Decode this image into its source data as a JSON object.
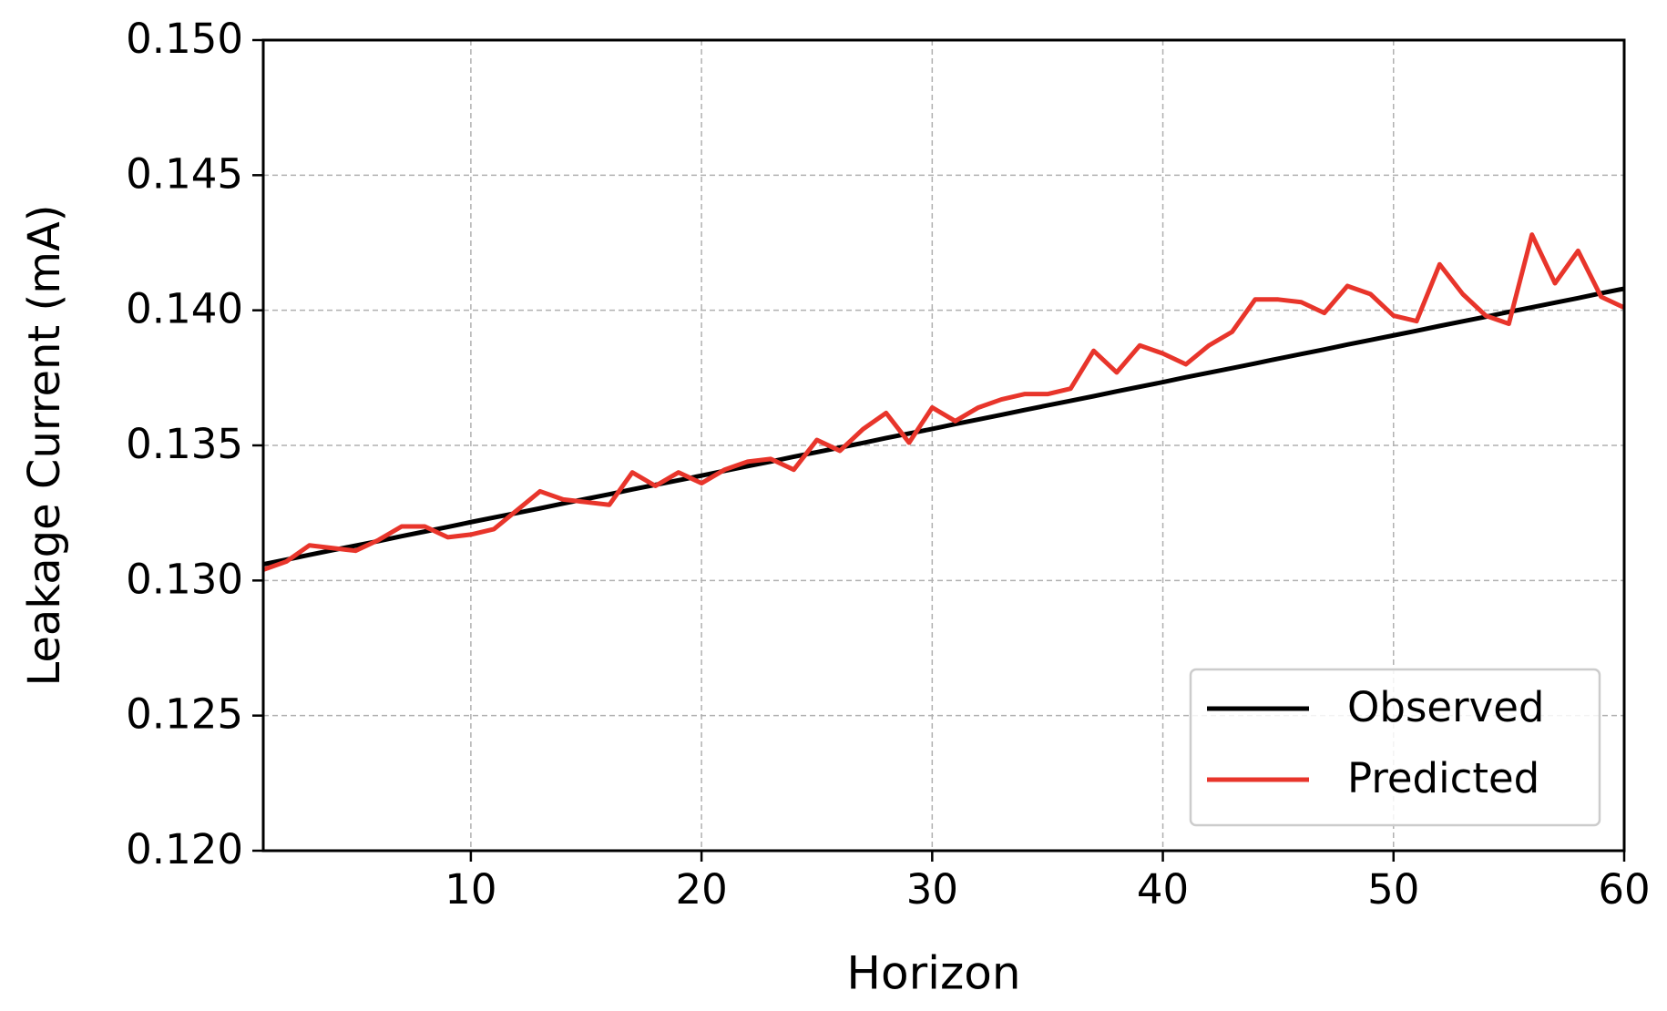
{
  "chart_data": {
    "type": "line",
    "x_label": "Horizon",
    "y_label": "Leakage Current (mA)",
    "x": [
      1,
      2,
      3,
      4,
      5,
      6,
      7,
      8,
      9,
      10,
      11,
      12,
      13,
      14,
      15,
      16,
      17,
      18,
      19,
      20,
      21,
      22,
      23,
      24,
      25,
      26,
      27,
      28,
      29,
      30,
      31,
      32,
      33,
      34,
      35,
      36,
      37,
      38,
      39,
      40,
      41,
      42,
      43,
      44,
      45,
      46,
      47,
      48,
      49,
      50,
      51,
      52,
      53,
      54,
      55,
      56,
      57,
      58,
      59,
      60
    ],
    "series": [
      {
        "name": "Observed",
        "color": "#000000",
        "values": [
          0.1306,
          0.13077,
          0.13095,
          0.13112,
          0.13129,
          0.13146,
          0.13164,
          0.13181,
          0.13198,
          0.13216,
          0.13233,
          0.1325,
          0.13267,
          0.13285,
          0.13302,
          0.13319,
          0.13337,
          0.13354,
          0.13371,
          0.13388,
          0.13406,
          0.13423,
          0.1344,
          0.13458,
          0.13475,
          0.13492,
          0.13509,
          0.13527,
          0.13544,
          0.13561,
          0.13579,
          0.13596,
          0.13613,
          0.13631,
          0.13648,
          0.13665,
          0.13682,
          0.137,
          0.13717,
          0.13734,
          0.13752,
          0.13769,
          0.13786,
          0.13803,
          0.13821,
          0.13838,
          0.13855,
          0.13873,
          0.1389,
          0.13907,
          0.13924,
          0.13942,
          0.13959,
          0.13976,
          0.13994,
          0.14011,
          0.14028,
          0.14045,
          0.14063,
          0.1408
        ]
      },
      {
        "name": "Predicted",
        "color": "#e8352b",
        "values": [
          0.1304,
          0.1307,
          0.1313,
          0.1312,
          0.1311,
          0.1315,
          0.132,
          0.132,
          0.1316,
          0.1317,
          0.1319,
          0.1326,
          0.1333,
          0.133,
          0.1329,
          0.1328,
          0.134,
          0.1335,
          0.134,
          0.1336,
          0.1341,
          0.1344,
          0.1345,
          0.1341,
          0.1352,
          0.1348,
          0.1356,
          0.1362,
          0.1351,
          0.1364,
          0.1359,
          0.1364,
          0.1367,
          0.1369,
          0.1369,
          0.1371,
          0.1385,
          0.1377,
          0.1387,
          0.1384,
          0.138,
          0.1387,
          0.1392,
          0.1404,
          0.1404,
          0.1403,
          0.1399,
          0.1409,
          0.1406,
          0.1398,
          0.1396,
          0.1417,
          0.1406,
          0.1398,
          0.1395,
          0.1428,
          0.141,
          0.1422,
          0.1405,
          0.1401
        ]
      }
    ],
    "xlim": [
      1,
      60
    ],
    "xticks": [
      10,
      20,
      30,
      40,
      50,
      60
    ],
    "ylim": [
      0.12,
      0.15
    ],
    "yticks": [
      {
        "value": 0.12,
        "label": "0.120"
      },
      0.125,
      {
        "value": 0.13,
        "label": "0.130"
      },
      0.135,
      {
        "value": 0.14,
        "label": "0.140"
      },
      0.145,
      {
        "value": 0.15,
        "label": "0.150"
      }
    ],
    "grid": true,
    "legend": "lower right"
  }
}
